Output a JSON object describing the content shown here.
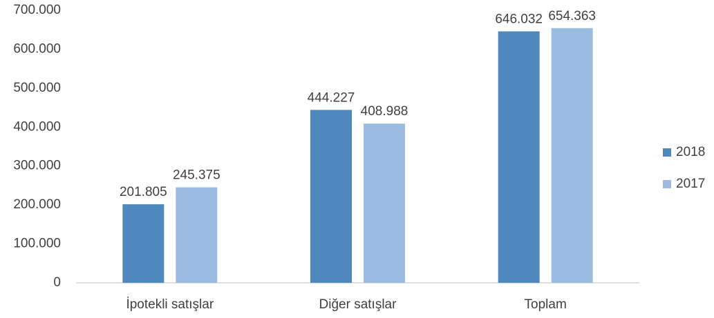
{
  "chart_data": {
    "type": "bar",
    "categories": [
      "İpotekli satışlar",
      "Diğer satışlar",
      "Toplam"
    ],
    "series": [
      {
        "name": "2018",
        "color": "#4f88bd",
        "values": [
          201805,
          444227,
          646032
        ],
        "value_labels": [
          "201.805",
          "444.227",
          "646.032"
        ]
      },
      {
        "name": "2017",
        "color": "#9bbbe0",
        "values": [
          245375,
          408988,
          654363
        ],
        "value_labels": [
          "245.375",
          "408.988",
          "654.363"
        ]
      }
    ],
    "ylim": [
      0,
      700000
    ],
    "yticks": [
      0,
      {
        "value": 100000,
        "label": "100.000"
      },
      {
        "value": 200000,
        "label": "200.000"
      },
      {
        "value": 300000,
        "label": "300.000"
      },
      {
        "value": 400000,
        "label": "400.000"
      },
      {
        "value": 500000,
        "label": "500.000"
      },
      {
        "value": 600000,
        "label": "600.000"
      },
      {
        "value": 700000,
        "label": "700.000"
      }
    ],
    "grid": false,
    "legend": "right"
  }
}
